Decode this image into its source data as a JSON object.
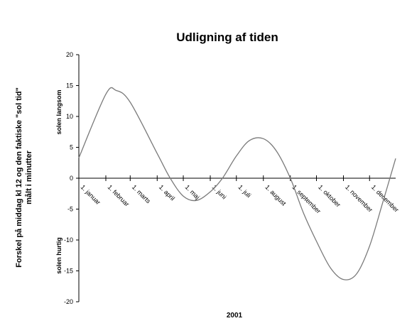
{
  "chart_data": {
    "type": "line",
    "title": "Udligning af tiden",
    "xlabel": "2001",
    "ylabel_line1": "Forskel på middag kl 12 og den faktiske \"sol tid\"",
    "ylabel_line2": "målt i minutter",
    "upper_note": "solen langsom",
    "lower_note": "solen hurtig",
    "ylim": [
      -20,
      20
    ],
    "yticks": [
      20,
      15,
      10,
      5,
      0,
      -5,
      -10,
      -15,
      -20
    ],
    "ytick_labels": [
      "20",
      "15",
      "10",
      "5",
      "0",
      "-5",
      "-10",
      "-15",
      "-20"
    ],
    "categories": [
      "1. januar",
      "1. februar",
      "1. marts",
      "1. april",
      "1. maj",
      "1. juni",
      "1. juli",
      "1. august",
      "1. september",
      "1. oktober",
      "1. november",
      "1. december"
    ],
    "x_unit": "day of year",
    "x_range": [
      1,
      365
    ],
    "month_start_days": [
      1,
      32,
      60,
      91,
      121,
      152,
      182,
      213,
      244,
      274,
      305,
      335
    ],
    "series": [
      {
        "x": [
          1,
          32,
          44,
          60,
          91,
          106,
          121,
          136,
          152,
          166,
          182,
          197,
          213,
          228,
          244,
          259,
          274,
          290,
          305,
          320,
          335,
          350,
          365
        ],
        "values": [
          3.3,
          13.6,
          14.2,
          12.3,
          4.0,
          0.0,
          -2.9,
          -3.6,
          -2.2,
          0.0,
          3.6,
          6.1,
          6.4,
          4.4,
          0.0,
          -5.6,
          -10.2,
          -14.5,
          -16.4,
          -15.5,
          -11.0,
          -4.0,
          3.2
        ]
      }
    ],
    "grid": false,
    "legend": "none"
  }
}
